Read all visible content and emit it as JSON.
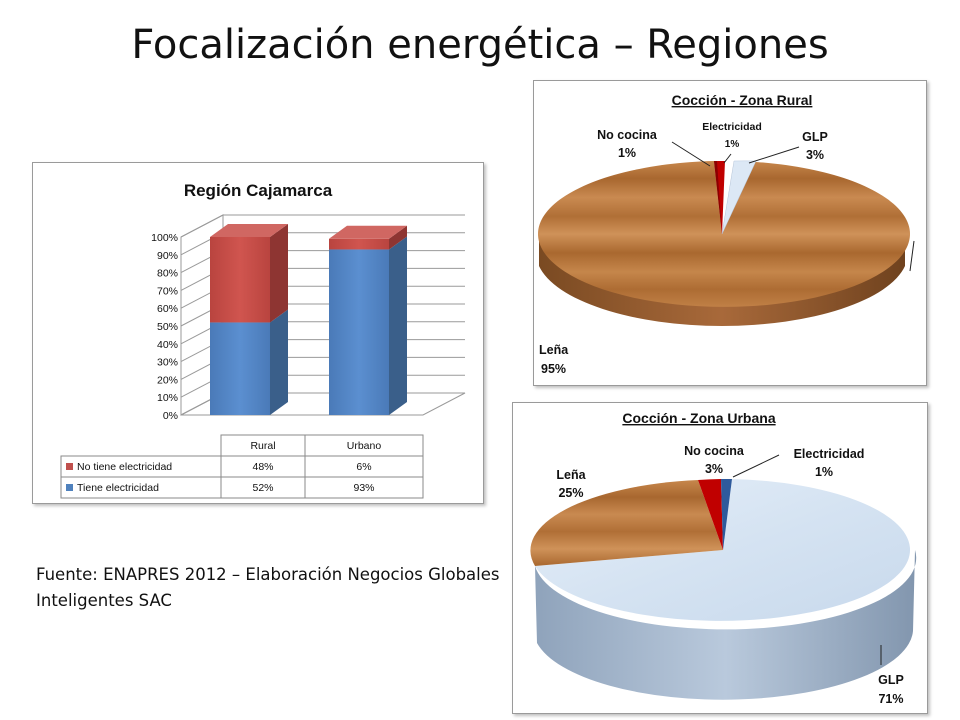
{
  "slide": {
    "title": "Focalización energética – Regiones",
    "source": "Fuente: ENAPRES 2012 – Elaboración Negocios Globales Inteligentes SAC"
  },
  "chart_data": [
    {
      "type": "bar",
      "stacked": true,
      "three_d": true,
      "title": "Región  Cajamarca",
      "categories": [
        "Rural",
        "Urbano"
      ],
      "series": [
        {
          "name": "Tiene electricidad",
          "values": [
            52,
            93
          ],
          "color": "#4f81bd",
          "labels": [
            "52%",
            "93%"
          ]
        },
        {
          "name": "No tiene electricidad",
          "values": [
            48,
            6
          ],
          "color": "#c0504d",
          "labels": [
            "48%",
            "6%"
          ]
        }
      ],
      "ylim": [
        0,
        100
      ],
      "yticks": [
        "0%",
        "10%",
        "20%",
        "30%",
        "40%",
        "50%",
        "60%",
        "70%",
        "80%",
        "90%",
        "100%"
      ],
      "grid": true,
      "legend": "data-table-bottom"
    },
    {
      "type": "pie",
      "three_d": true,
      "title": "Cocción - Zona Rural",
      "slices": [
        {
          "label": "Electricidad",
          "value": 1,
          "pct": "1%",
          "color": "#c00000"
        },
        {
          "label": "GLP",
          "value": 3,
          "pct": "3%",
          "color": "#dce8f5"
        },
        {
          "label": "Leña",
          "value": 95,
          "pct": "95%",
          "color": "#b5743c"
        },
        {
          "label": "No cocina",
          "value": 1,
          "pct": "1%",
          "color": "#c00000"
        }
      ]
    },
    {
      "type": "pie",
      "three_d": true,
      "title": "Cocción - Zona Urbana",
      "slices": [
        {
          "label": "Electricidad",
          "value": 1,
          "pct": "1%",
          "color": "#2e5a9c"
        },
        {
          "label": "GLP",
          "value": 71,
          "pct": "71%",
          "color": "#dce8f5"
        },
        {
          "label": "Leña",
          "value": 25,
          "pct": "25%",
          "color": "#b5743c"
        },
        {
          "label": "No cocina",
          "value": 3,
          "pct": "3%",
          "color": "#c00000"
        }
      ]
    }
  ]
}
